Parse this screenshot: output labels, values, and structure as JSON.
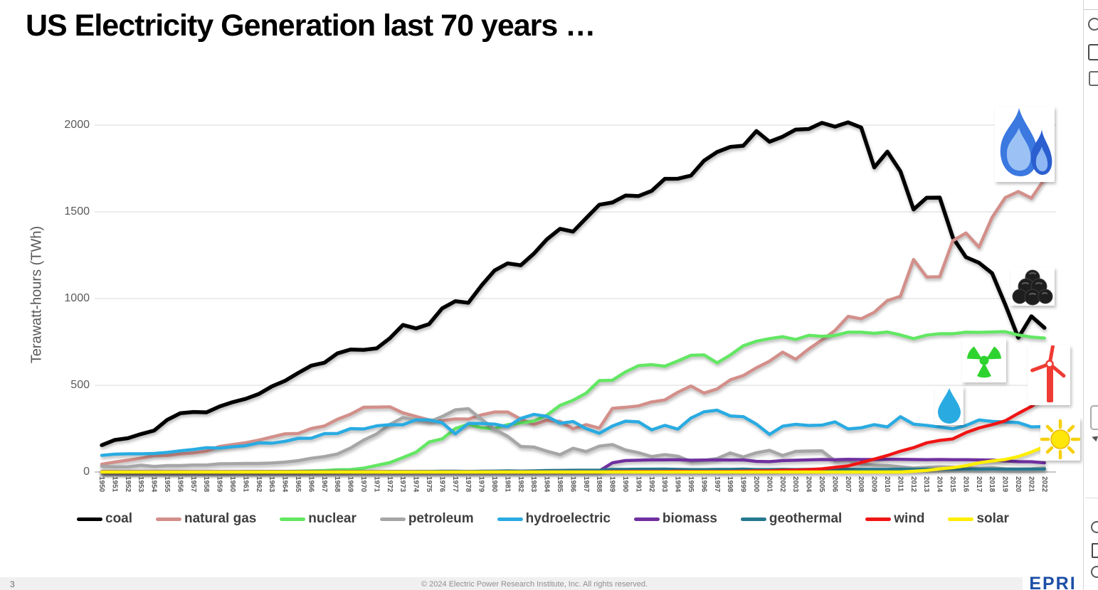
{
  "title": "US Electricity Generation last 70 years …",
  "footer": {
    "page_number": "3",
    "copyright": "© 2024 Electric Power Research Institute, Inc. All rights reserved.",
    "logo_text": "EPRI"
  },
  "icons": [
    {
      "name": "gas-flame-icon",
      "meaning": "natural gas"
    },
    {
      "name": "coal-pile-icon",
      "meaning": "coal"
    },
    {
      "name": "radiation-icon",
      "meaning": "nuclear"
    },
    {
      "name": "water-drop-icon",
      "meaning": "hydroelectric"
    },
    {
      "name": "wind-turbine-icon",
      "meaning": "wind"
    },
    {
      "name": "sun-icon",
      "meaning": "solar"
    }
  ],
  "chart_data": {
    "type": "line",
    "title": "US Electricity Generation last 70 years …",
    "xlabel": "",
    "ylabel": "Terawatt-hours (TWh)",
    "ylim": [
      0,
      2000
    ],
    "yticks": [
      0,
      500,
      1000,
      1500,
      2000
    ],
    "grid": true,
    "legend_position": "bottom",
    "x": [
      1950,
      1951,
      1952,
      1953,
      1954,
      1955,
      1956,
      1957,
      1958,
      1959,
      1960,
      1961,
      1962,
      1963,
      1964,
      1965,
      1966,
      1967,
      1968,
      1969,
      1970,
      1971,
      1972,
      1973,
      1974,
      1975,
      1976,
      1977,
      1978,
      1979,
      1980,
      1981,
      1982,
      1983,
      1984,
      1985,
      1986,
      1987,
      1988,
      1989,
      1990,
      1991,
      1992,
      1993,
      1994,
      1995,
      1996,
      1997,
      1998,
      1999,
      2000,
      2001,
      2002,
      2003,
      2004,
      2005,
      2006,
      2007,
      2008,
      2009,
      2010,
      2011,
      2012,
      2013,
      2014,
      2015,
      2016,
      2017,
      2018,
      2019,
      2020,
      2021,
      2022
    ],
    "series": [
      {
        "name": "coal",
        "color": "#000000",
        "values": [
          155,
          185,
          195,
          219,
          239,
          301,
          339,
          346,
          344,
          378,
          403,
          422,
          450,
          494,
          526,
          571,
          613,
          630,
          684,
          706,
          704,
          713,
          771,
          848,
          828,
          853,
          944,
          985,
          976,
          1075,
          1162,
          1203,
          1192,
          1259,
          1342,
          1402,
          1386,
          1464,
          1541,
          1554,
          1594,
          1591,
          1621,
          1690,
          1691,
          1709,
          1795,
          1845,
          1874,
          1881,
          1966,
          1904,
          1933,
          1974,
          1978,
          2013,
          1991,
          2016,
          1986,
          1756,
          1847,
          1733,
          1514,
          1581,
          1582,
          1352,
          1239,
          1206,
          1146,
          966,
          774,
          898,
          831
        ]
      },
      {
        "name": "natural gas",
        "color": "#d38f8a",
        "values": [
          45,
          57,
          68,
          80,
          94,
          95,
          104,
          110,
          120,
          147,
          158,
          169,
          184,
          202,
          220,
          222,
          251,
          265,
          304,
          333,
          373,
          374,
          376,
          341,
          320,
          300,
          295,
          306,
          305,
          329,
          346,
          346,
          305,
          274,
          297,
          292,
          249,
          273,
          253,
          367,
          373,
          381,
          404,
          415,
          460,
          496,
          455,
          479,
          531,
          556,
          601,
          639,
          691,
          650,
          710,
          761,
          816,
          897,
          883,
          921,
          988,
          1013,
          1225,
          1124,
          1126,
          1333,
          1378,
          1296,
          1468,
          1582,
          1617,
          1579,
          1689
        ]
      },
      {
        "name": "nuclear",
        "color": "#63e763",
        "values": [
          0,
          0,
          0,
          0,
          0,
          0,
          0,
          0,
          0,
          0,
          1,
          2,
          2,
          3,
          3,
          4,
          6,
          8,
          13,
          14,
          22,
          38,
          54,
          83,
          114,
          173,
          191,
          251,
          276,
          255,
          251,
          273,
          283,
          294,
          328,
          384,
          414,
          455,
          527,
          529,
          577,
          613,
          619,
          610,
          640,
          673,
          675,
          629,
          674,
          728,
          754,
          769,
          780,
          764,
          788,
          782,
          787,
          806,
          806,
          799,
          807,
          790,
          769,
          789,
          797,
          797,
          806,
          805,
          807,
          809,
          790,
          778,
          772
        ]
      },
      {
        "name": "petroleum",
        "color": "#a6a6a6",
        "values": [
          34,
          29,
          30,
          39,
          32,
          37,
          37,
          40,
          40,
          47,
          48,
          49,
          49,
          52,
          57,
          65,
          79,
          89,
          104,
          138,
          184,
          220,
          274,
          314,
          301,
          289,
          320,
          358,
          365,
          304,
          246,
          206,
          147,
          144,
          120,
          100,
          137,
          118,
          149,
          158,
          127,
          111,
          89,
          100,
          91,
          61,
          67,
          78,
          110,
          87,
          111,
          125,
          95,
          119,
          121,
          122,
          64,
          66,
          46,
          39,
          37,
          30,
          23,
          27,
          30,
          28,
          24,
          21,
          25,
          18,
          17,
          19,
          23
        ]
      },
      {
        "name": "hydroelectric",
        "color": "#29abe2",
        "values": [
          96,
          103,
          105,
          105,
          107,
          113,
          122,
          130,
          140,
          138,
          146,
          152,
          168,
          166,
          177,
          194,
          195,
          221,
          222,
          250,
          248,
          266,
          273,
          272,
          301,
          300,
          284,
          220,
          280,
          280,
          276,
          261,
          309,
          332,
          321,
          281,
          291,
          250,
          223,
          265,
          293,
          289,
          243,
          269,
          247,
          311,
          347,
          356,
          323,
          319,
          276,
          217,
          264,
          275,
          268,
          270,
          289,
          248,
          255,
          273,
          260,
          319,
          276,
          269,
          259,
          249,
          268,
          300,
          292,
          288,
          285,
          260,
          262
        ]
      },
      {
        "name": "biomass",
        "color": "#7030a0",
        "values": [
          2,
          2,
          2,
          2,
          2,
          2,
          2,
          2,
          2,
          2,
          2,
          2,
          2,
          2,
          2,
          2,
          2,
          2,
          2,
          2,
          2,
          2,
          2,
          2,
          2,
          3,
          3,
          3,
          3,
          3,
          3,
          3,
          3,
          3,
          4,
          4,
          4,
          5,
          6,
          53,
          66,
          68,
          70,
          70,
          71,
          68,
          69,
          70,
          69,
          70,
          61,
          60,
          66,
          68,
          70,
          72,
          71,
          73,
          72,
          72,
          73,
          73,
          72,
          71,
          72,
          71,
          71,
          70,
          69,
          64,
          60,
          59,
          53
        ]
      },
      {
        "name": "geothermal",
        "color": "#26788f",
        "values": [
          0,
          0,
          0,
          0,
          0,
          0,
          0,
          0,
          0,
          0,
          0,
          0,
          0,
          0,
          0,
          0,
          0,
          0,
          0,
          1,
          1,
          1,
          2,
          2,
          3,
          3,
          4,
          4,
          3,
          4,
          5,
          6,
          5,
          6,
          8,
          9,
          10,
          10,
          10,
          15,
          15,
          16,
          16,
          17,
          15,
          14,
          14,
          15,
          15,
          17,
          14,
          14,
          15,
          14,
          15,
          15,
          15,
          15,
          15,
          15,
          15,
          17,
          16,
          17,
          16,
          16,
          16,
          16,
          17,
          16,
          16,
          16,
          17
        ]
      },
      {
        "name": "wind",
        "color": "#f01414",
        "values": [
          0,
          0,
          0,
          0,
          0,
          0,
          0,
          0,
          0,
          0,
          0,
          0,
          0,
          0,
          0,
          0,
          0,
          0,
          0,
          0,
          0,
          0,
          0,
          0,
          0,
          0,
          0,
          0,
          0,
          0,
          0,
          0,
          0,
          0,
          0,
          0,
          0,
          0,
          0,
          2,
          3,
          3,
          3,
          3,
          4,
          3,
          3,
          3,
          3,
          5,
          6,
          7,
          10,
          11,
          14,
          18,
          27,
          35,
          55,
          74,
          95,
          120,
          140,
          168,
          182,
          191,
          227,
          254,
          273,
          295,
          338,
          378,
          434
        ]
      },
      {
        "name": "solar",
        "color": "#ffee00",
        "values": [
          0,
          0,
          0,
          0,
          0,
          0,
          0,
          0,
          0,
          0,
          0,
          0,
          0,
          0,
          0,
          0,
          0,
          0,
          0,
          0,
          0,
          0,
          0,
          0,
          0,
          0,
          0,
          0,
          0,
          0,
          0,
          0,
          0,
          0,
          0,
          0,
          0,
          0,
          0,
          0,
          0,
          0,
          0,
          0,
          0,
          0,
          0,
          0,
          0,
          0,
          0,
          0,
          0,
          0,
          0,
          0,
          0,
          0,
          0,
          0,
          0,
          0,
          4,
          9,
          18,
          25,
          36,
          53,
          64,
          72,
          89,
          115,
          146
        ]
      }
    ]
  }
}
